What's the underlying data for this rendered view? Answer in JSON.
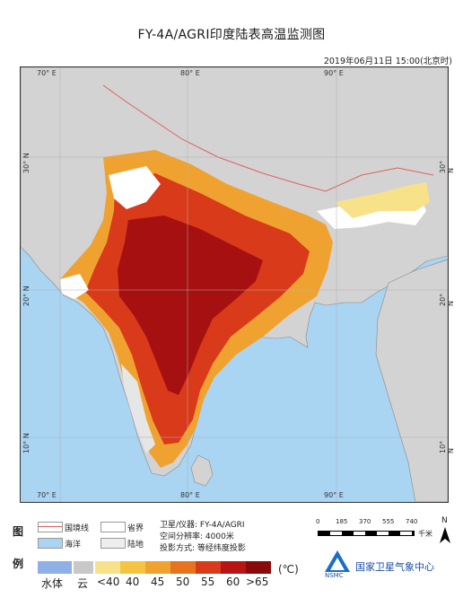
{
  "title": "FY-4A/AGRI印度陆表高温监测图",
  "timestamp": "2019年06月11日 15:00(北京时)",
  "map": {
    "lon_top": [
      "70° E",
      "80° E",
      "90° E"
    ],
    "lon_bottom": [
      "70° E",
      "80° E",
      "90° E"
    ],
    "lat_left": [
      "30° N",
      "20° N",
      "10° N"
    ],
    "lat_right": [
      "30° N",
      "20° N",
      "10° N"
    ],
    "colors": {
      "ocean": "#a9d4f2",
      "land": "#d3d3d3",
      "border": "#e06060"
    }
  },
  "legend": {
    "tu": "图",
    "li": "例",
    "boundary_national": "国境线",
    "boundary_province": "省界",
    "ocean": "海洋",
    "land": "陆地",
    "satellite_label": "卫星/仪器: FY-4A/AGRI",
    "resolution_label": "空间分辨率: 4000米",
    "projection_label": "投影方式:   等经纬度投影",
    "scale_ticks": [
      "0",
      "185",
      "370",
      "555",
      "740"
    ],
    "scale_unit": "千米",
    "north": "N",
    "agency_logo_text": "NSMC",
    "agency_name": "国家卫星气象中心",
    "water_label": "水体",
    "cloud_label": "云",
    "temp_classes": [
      {
        "label": "<40",
        "color": "#f7e28a"
      },
      {
        "label": "40",
        "color": "#f5c542"
      },
      {
        "label": "45",
        "color": "#f0a230"
      },
      {
        "label": "50",
        "color": "#e8731f"
      },
      {
        "label": "55",
        "color": "#d93a1a"
      },
      {
        "label": "60",
        "color": "#b81414"
      },
      {
        "label": ">65",
        "color": "#8a0a0a"
      }
    ],
    "unit": "(℃)",
    "water_color": "#8fb0e6",
    "cloud_color": "#c8c8c8"
  }
}
